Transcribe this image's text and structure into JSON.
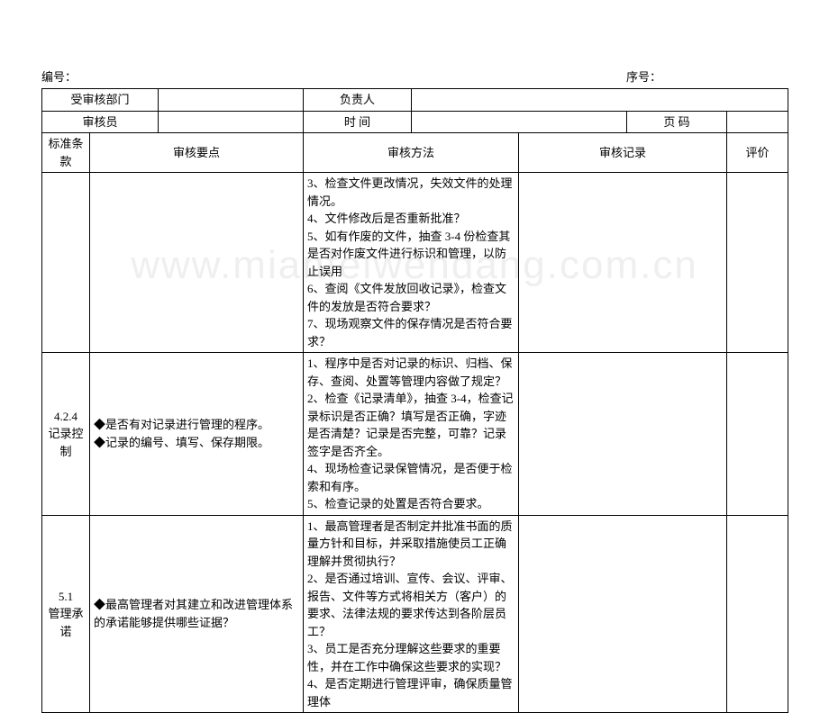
{
  "watermark": "www.mianfeiwendang.com.cn",
  "header": {
    "left_label": "编号：",
    "right_label": "序号："
  },
  "info_table": {
    "row1_label1": "受审核部门",
    "row1_label2": "负责人",
    "row2_label1": "审核员",
    "row2_label2": "时 间",
    "row2_label3": "页 码"
  },
  "columns": {
    "clause": "标准条款",
    "points": "审核要点",
    "method": "审核方法",
    "record": "审核记录",
    "eval": "评价"
  },
  "rows": [
    {
      "clause": "",
      "points": "",
      "method": "3、检查文件更改情况，失效文件的处理情况。\n4、文件修改后是否重新批准？\n5、如有作废的文件，抽查 3-4 份检查其是否对作废文件进行标识和管理，以防止误用\n6、查阅《文件发放回收记录》，检查文件的发放是否符合要求？\n7、现场观察文件的保存情况是否符合要求？"
    },
    {
      "clause": "4.2.4\n记录控制",
      "points": "◆是否有对记录进行管理的程序。\n◆记录的编号、填写、保存期限。",
      "method": "1、程序中是否对记录的标识、归档、保存、查阅、处置等管理内容做了规定？\n2、检查《记录清单》，抽查 3-4，检查记录标识是否正确？填写是否正确，字迹是否清楚？记录是否完整，可靠？记录签字是否齐全。\n4、现场检查记录保管情况，是否便于检索和有序。\n5、检查记录的处置是否符合要求。"
    },
    {
      "clause": "5.1\n管理承诺",
      "points": "◆最高管理者对其建立和改进管理体系的承诺能够提供哪些证据？",
      "method": "1、最高管理者是否制定并批准书面的质量方针和目标，并采取措施使员工正确理解并贯彻执行？\n2、是否通过培训、宣传、会议、评审、报告、文件等方式将相关方（客户）的要求、法律法规的要求传达到各阶层员工？\n3、员工是否充分理解这些要求的重要性，并在工作中确保这些要求的实现？\n4、是否定期进行管理评审，确保质量管理体"
    }
  ]
}
